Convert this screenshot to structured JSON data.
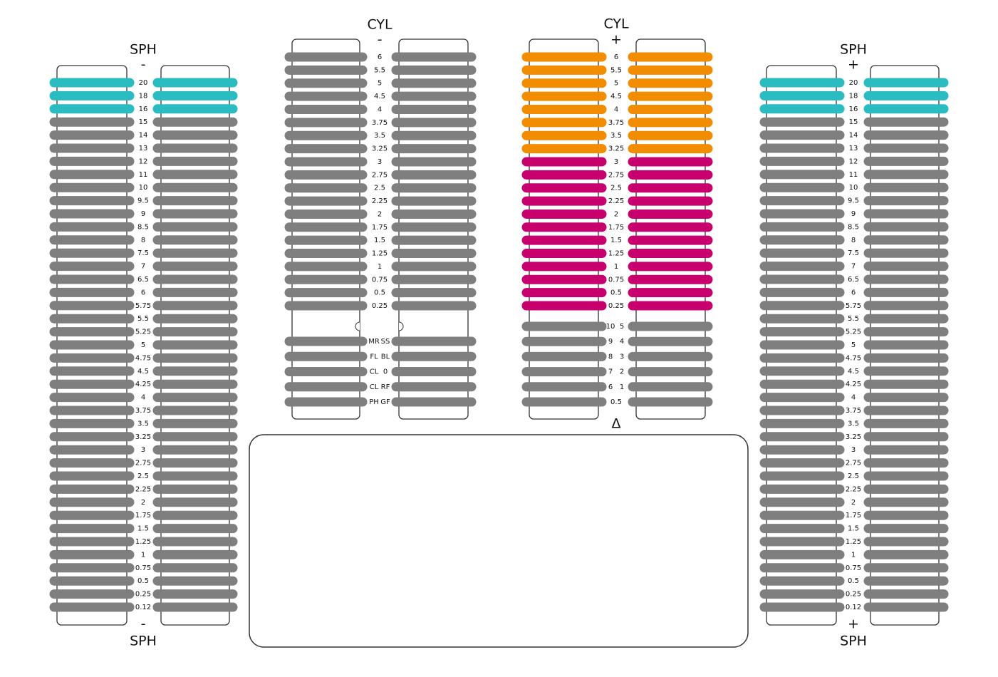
{
  "panels": [
    {
      "title": "SPH",
      "sign": "-",
      "footer_sign": "-",
      "footer_title": "SPH",
      "rows": [
        "20",
        "18",
        "16",
        "15",
        "14",
        "13",
        "12",
        "11",
        "10",
        "9.5",
        "9",
        "8.5",
        "8",
        "7.5",
        "7",
        "6.5",
        "6",
        "5.75",
        "5.5",
        "5.25",
        "5",
        "4.75",
        "4.5",
        "4.25",
        "4",
        "3.75",
        "3.5",
        "3.25",
        "3",
        "2.75",
        "2.5",
        "2.25",
        "2",
        "1.75",
        "1.5",
        "1.25",
        "1",
        "0.75",
        "0.5",
        "0.25",
        "0.12"
      ],
      "row_colors": [
        "#2bbcc1",
        "#2bbcc1",
        "#2bbcc1",
        "#7f7f7f",
        "#7f7f7f",
        "#7f7f7f",
        "#7f7f7f",
        "#7f7f7f",
        "#7f7f7f",
        "#7f7f7f",
        "#7f7f7f",
        "#7f7f7f",
        "#7f7f7f",
        "#7f7f7f",
        "#7f7f7f",
        "#7f7f7f",
        "#7f7f7f",
        "#7f7f7f",
        "#7f7f7f",
        "#7f7f7f",
        "#7f7f7f",
        "#7f7f7f",
        "#7f7f7f",
        "#7f7f7f",
        "#7f7f7f",
        "#7f7f7f",
        "#7f7f7f",
        "#7f7f7f",
        "#7f7f7f",
        "#7f7f7f",
        "#7f7f7f",
        "#7f7f7f",
        "#7f7f7f",
        "#7f7f7f",
        "#7f7f7f",
        "#7f7f7f",
        "#7f7f7f",
        "#7f7f7f",
        "#7f7f7f",
        "#7f7f7f",
        "#7f7f7f"
      ]
    },
    {
      "title": "CYL",
      "sign": "-",
      "rows": [
        "6",
        "5.5",
        "5",
        "4.5",
        "4",
        "3.75",
        "3.5",
        "3.25",
        "3",
        "2.75",
        "2.5",
        "2.25",
        "2",
        "1.75",
        "1.5",
        "1.25",
        "1",
        "0.75",
        "0.5",
        "0.25"
      ],
      "row_colors": [
        "#7f7f7f",
        "#7f7f7f",
        "#7f7f7f",
        "#7f7f7f",
        "#7f7f7f",
        "#7f7f7f",
        "#7f7f7f",
        "#7f7f7f",
        "#7f7f7f",
        "#7f7f7f",
        "#7f7f7f",
        "#7f7f7f",
        "#7f7f7f",
        "#7f7f7f",
        "#7f7f7f",
        "#7f7f7f",
        "#7f7f7f",
        "#7f7f7f",
        "#7f7f7f",
        "#7f7f7f"
      ],
      "extra_rows": [
        [
          "MR",
          "SS"
        ],
        [
          "FL",
          "BL"
        ],
        [
          "CL",
          "0"
        ],
        [
          "CL",
          "RF"
        ],
        [
          "PH",
          "GF"
        ]
      ],
      "extra_color": "#7f7f7f"
    },
    {
      "title": "CYL",
      "sign": "+",
      "rows": [
        "6",
        "5.5",
        "5",
        "4.5",
        "4",
        "3.75",
        "3.5",
        "3.25",
        "3",
        "2.75",
        "2.5",
        "2.25",
        "2",
        "1.75",
        "1.5",
        "1.25",
        "1",
        "0.75",
        "0.5",
        "0.25"
      ],
      "row_colors": [
        "#f28c00",
        "#f28c00",
        "#f28c00",
        "#f28c00",
        "#f28c00",
        "#f28c00",
        "#f28c00",
        "#f28c00",
        "#c8006e",
        "#c8006e",
        "#c8006e",
        "#c8006e",
        "#c8006e",
        "#c8006e",
        "#c8006e",
        "#c8006e",
        "#c8006e",
        "#c8006e",
        "#c8006e",
        "#c8006e"
      ],
      "extra_rows": [
        [
          "10",
          "5"
        ],
        [
          "9",
          "4"
        ],
        [
          "8",
          "3"
        ],
        [
          "7",
          "2"
        ],
        [
          "6",
          "1"
        ],
        [
          "0.5"
        ]
      ],
      "extra_color": "#7f7f7f",
      "marker": "Δ"
    },
    {
      "title": "SPH",
      "sign": "+",
      "footer_sign": "+",
      "footer_title": "SPH",
      "rows": [
        "20",
        "18",
        "16",
        "15",
        "14",
        "13",
        "12",
        "11",
        "10",
        "9.5",
        "9",
        "8.5",
        "8",
        "7.5",
        "7",
        "6.5",
        "6",
        "5.75",
        "5.5",
        "5.25",
        "5",
        "4.75",
        "4.5",
        "4.25",
        "4",
        "3.75",
        "3.5",
        "3.25",
        "3",
        "2.75",
        "2.5",
        "2.25",
        "2",
        "1.75",
        "1.5",
        "1.25",
        "1",
        "0.75",
        "0.5",
        "0.25",
        "0.12"
      ],
      "row_colors": [
        "#2bbcc1",
        "#2bbcc1",
        "#2bbcc1",
        "#7f7f7f",
        "#7f7f7f",
        "#7f7f7f",
        "#7f7f7f",
        "#7f7f7f",
        "#7f7f7f",
        "#7f7f7f",
        "#7f7f7f",
        "#7f7f7f",
        "#7f7f7f",
        "#7f7f7f",
        "#7f7f7f",
        "#7f7f7f",
        "#7f7f7f",
        "#7f7f7f",
        "#7f7f7f",
        "#7f7f7f",
        "#7f7f7f",
        "#7f7f7f",
        "#7f7f7f",
        "#7f7f7f",
        "#7f7f7f",
        "#7f7f7f",
        "#7f7f7f",
        "#7f7f7f",
        "#7f7f7f",
        "#7f7f7f",
        "#7f7f7f",
        "#7f7f7f",
        "#7f7f7f",
        "#7f7f7f",
        "#7f7f7f",
        "#7f7f7f",
        "#7f7f7f",
        "#7f7f7f",
        "#7f7f7f",
        "#7f7f7f",
        "#7f7f7f"
      ]
    }
  ]
}
